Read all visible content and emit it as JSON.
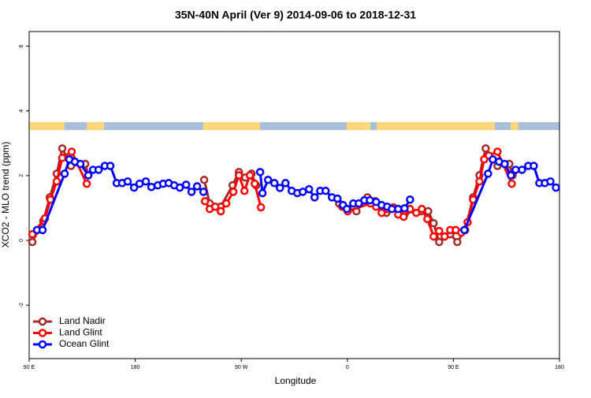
{
  "chart_data": {
    "type": "line",
    "title": "35N-40N April (Ver 9)   2014-09-06 to 2018-12-31",
    "x_label": "Longitude",
    "y_label": "XCO2 - MLO trend (ppm)",
    "xlim": [
      90,
      540
    ],
    "ylim": [
      -3.65,
      6.45
    ],
    "xticks": [
      {
        "value": 90,
        "label": "90 E"
      },
      180,
      {
        "value": 270,
        "label": "90 W"
      },
      {
        "value": 360,
        "label": "0"
      },
      {
        "value": 450,
        "label": "90 E"
      },
      {
        "value": 540,
        "label": "180"
      }
    ],
    "yticks": [
      -2,
      0,
      2,
      4,
      6
    ],
    "legend": "bottom-left",
    "series": [
      {
        "name": "Land Nadir",
        "color": "#a52a2a",
        "x": [
          92.7,
          102,
          107.5,
          113.4,
          118.1,
          125.5,
          137.6,
          140.2,
          null,
          238.5,
          243.2,
          252.6,
          262.6,
          268.0,
          273.4,
          278.7,
          282.7,
          null,
          353,
          360.3,
          367.7,
          377.0,
          383.7,
          393.1,
          403.1,
          409.2,
          422.5,
          428.6,
          433.2,
          437.9,
          447.3,
          453.3,
          460.0,
          466.7,
          472.1,
          477.4,
          487.4,
          497.5,
          500.2
        ],
        "values": [
          -0.05,
          0.6,
          1.33,
          2.06,
          2.84,
          2.3,
          2.36,
          2.01,
          null,
          1.87,
          1.14,
          1.04,
          1.7,
          2.11,
          1.94,
          2.06,
          1.7,
          null,
          1.14,
          0.97,
          0.9,
          1.33,
          1.21,
          0.85,
          0.97,
          0.85,
          0.9,
          0.9,
          0.53,
          -0.05,
          0.19,
          -0.05,
          0.32,
          1.33,
          2.01,
          2.84,
          2.3,
          2.36,
          2.01
        ]
      },
      {
        "name": "Land Glint",
        "color": "#ff0000",
        "x": [
          92.7,
          103.4,
          108.1,
          113.4,
          118.1,
          126.1,
          138.9,
          null,
          239.2,
          243.2,
          247.9,
          252.6,
          257.3,
          263.3,
          268.0,
          272.7,
          277.3,
          281.4,
          286.7,
          null,
          355.6,
          360.3,
          379.7,
          384.4,
          389.1,
          393.8,
          399.1,
          403.1,
          407.8,
          413.2,
          418.5,
          423.2,
          427.9,
          433.2,
          437.9,
          442.6,
          447.3,
          452.0,
          456.7,
          462.0,
          466.7,
          472.1,
          476.1,
          480.1,
          487.4,
          499.5
        ],
        "values": [
          0.19,
          0.68,
          1.26,
          1.82,
          2.55,
          2.74,
          1.75,
          null,
          1.21,
          0.97,
          1.04,
          0.9,
          1.14,
          1.5,
          2.01,
          1.53,
          2.01,
          1.75,
          1.02,
          null,
          1.04,
          0.9,
          1.14,
          1.04,
          0.85,
          0.97,
          1.02,
          0.8,
          0.73,
          0.97,
          0.85,
          0.97,
          0.66,
          0.12,
          0.29,
          0.12,
          0.32,
          0.32,
          0.24,
          0.56,
          1.26,
          1.82,
          2.5,
          2.62,
          2.74,
          1.75
        ]
      },
      {
        "name": "Ocean Glint",
        "color": "#0000ff",
        "x": [
          96.7,
          101.4,
          120.1,
          124.1,
          128.8,
          133.5,
          140.2,
          144.2,
          148.9,
          154.2,
          158.9,
          164.3,
          168.9,
          173.6,
          179.0,
          183.7,
          189.0,
          193.7,
          199.1,
          203.7,
          208.4,
          213.1,
          217.8,
          223.2,
          227.8,
          232.5,
          237.9,
          null,
          286.0,
          288.0,
          292.7,
          298.1,
          302.8,
          307.5,
          312.8,
          317.5,
          322.2,
          327.5,
          332.2,
          336.9,
          341.6,
          346.9,
          351.6,
          356.3,
          359.6,
          365.0,
          369.7,
          374.4,
          379.1,
          384.4,
          389.1,
          393.8,
          397.8,
          403.1,
          408.5,
          413.2,
          null,
          459.3,
          479.4,
          483.4,
          488.7,
          493.5,
          498.8,
          502.8,
          508.2,
          513.5,
          518.2,
          522.9,
          527.6,
          532.3,
          537.0
        ],
        "values": [
          0.32,
          0.32,
          2.06,
          2.5,
          2.43,
          2.36,
          2.01,
          2.18,
          2.18,
          2.3,
          2.3,
          1.77,
          1.77,
          1.82,
          1.63,
          1.75,
          1.82,
          1.65,
          1.7,
          1.75,
          1.77,
          1.7,
          1.63,
          1.72,
          1.5,
          1.67,
          1.5,
          null,
          2.11,
          1.46,
          1.87,
          1.77,
          1.62,
          1.77,
          1.53,
          1.46,
          1.5,
          1.58,
          1.33,
          1.53,
          1.53,
          1.33,
          1.29,
          1.09,
          0.97,
          1.14,
          1.14,
          1.24,
          1.24,
          1.19,
          1.09,
          1.04,
          0.97,
          0.97,
          0.99,
          1.26,
          null,
          0.32,
          2.06,
          2.5,
          2.43,
          2.36,
          2.01,
          2.18,
          2.18,
          2.3,
          2.3,
          1.77,
          1.77,
          1.82,
          1.63
        ]
      }
    ]
  }
}
